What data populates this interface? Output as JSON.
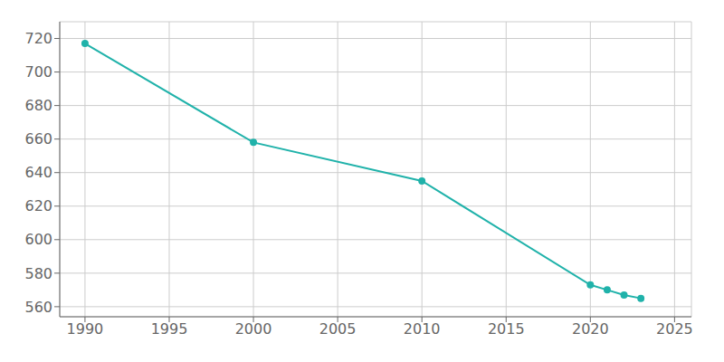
{
  "chart_data": {
    "type": "line",
    "x": [
      1990,
      2000,
      2010,
      2020,
      2021,
      2022,
      2023
    ],
    "values": [
      717,
      658,
      635,
      573,
      570,
      567,
      565
    ],
    "color": "#20B2AA",
    "marker": "circle",
    "xlim": [
      1988.5,
      2026
    ],
    "ylim": [
      554,
      730
    ],
    "xticks": [
      1990,
      1995,
      2000,
      2005,
      2010,
      2015,
      2020,
      2025
    ],
    "yticks": [
      560,
      580,
      600,
      620,
      640,
      660,
      680,
      700,
      720
    ],
    "grid": true
  }
}
